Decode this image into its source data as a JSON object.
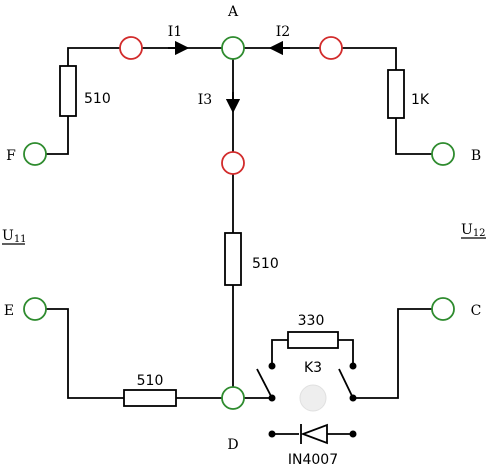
{
  "nodes": {
    "A": "A",
    "B": "B",
    "C": "C",
    "D": "D",
    "E": "E",
    "F": "F"
  },
  "currents": {
    "i1": "I1",
    "i2": "I2",
    "i3": "I3"
  },
  "voltages": {
    "u11_base": "U",
    "u11_sub": "11",
    "u12_base": "U",
    "u12_sub": "12"
  },
  "components": {
    "r_left_top": "510",
    "r_right_top": "1K",
    "r_center": "510",
    "r_bottom": "510",
    "r_switch": "330",
    "switch": "K3",
    "diode": "IN4007"
  },
  "colors": {
    "terminal": "#2e8b2e",
    "probe": "#d22b2b",
    "wire": "#000000",
    "button": "#eeeeee"
  }
}
